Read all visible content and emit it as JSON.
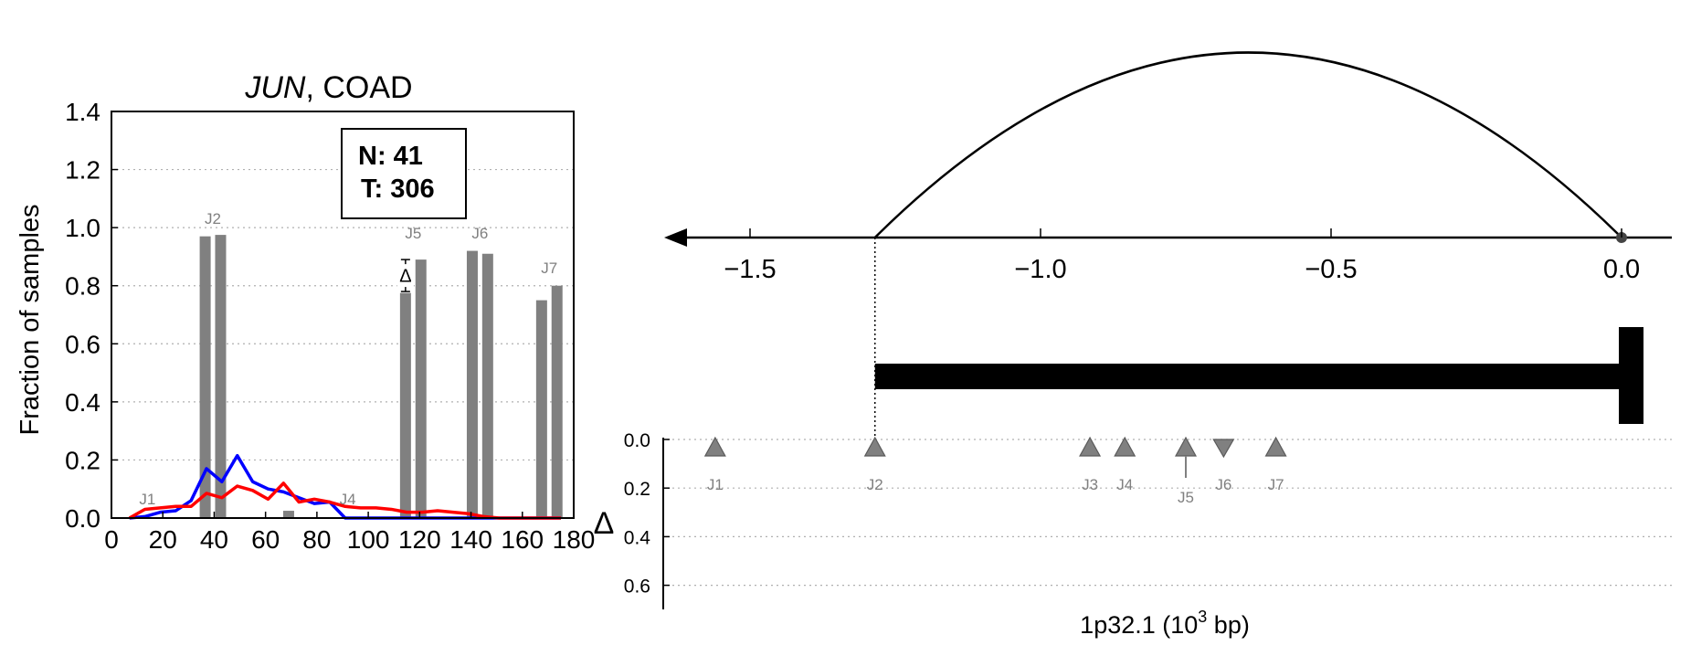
{
  "chart_data": [
    {
      "type": "bar",
      "title_gene": "JUN",
      "title_rest": ", COAD",
      "ylabel": "Fraction of samples",
      "xlim": [
        0,
        180
      ],
      "ylim": [
        0,
        1.4
      ],
      "xticks": [
        "0",
        "20",
        "40",
        "60",
        "80",
        "100",
        "120",
        "140",
        "160",
        "180"
      ],
      "xtick_values": [
        0,
        20,
        40,
        60,
        80,
        100,
        120,
        140,
        160,
        180
      ],
      "yticks": [
        "0.0",
        "0.2",
        "0.4",
        "0.6",
        "0.8",
        "1.0",
        "1.2",
        "1.4"
      ],
      "ytick_values": [
        0,
        0.2,
        0.4,
        0.6,
        0.8,
        1.0,
        1.2,
        1.4
      ],
      "grid": "horizontal dotted",
      "legend_box": {
        "n_label": "N: 41",
        "t_label": "T: 306",
        "placement": "top-right"
      },
      "bars": [
        {
          "x": 36.5,
          "value": 0.97,
          "group": "J2",
          "kind": "normal"
        },
        {
          "x": 42.5,
          "value": 0.975,
          "group": "J2",
          "kind": "tumor"
        },
        {
          "x": 69,
          "value": 0.025,
          "group": "",
          "kind": "normal"
        },
        {
          "x": 114.5,
          "value": 0.775,
          "group": "J5",
          "kind": "normal"
        },
        {
          "x": 120.5,
          "value": 0.89,
          "group": "J5",
          "kind": "tumor"
        },
        {
          "x": 140.5,
          "value": 0.92,
          "group": "J6",
          "kind": "normal"
        },
        {
          "x": 146.5,
          "value": 0.91,
          "group": "J6",
          "kind": "tumor"
        },
        {
          "x": 167.5,
          "value": 0.75,
          "group": "J7",
          "kind": "normal"
        },
        {
          "x": 173.5,
          "value": 0.8,
          "group": "J7",
          "kind": "tumor"
        }
      ],
      "bar_labels": [
        {
          "text": "J1",
          "x": 14,
          "y": 0.035
        },
        {
          "text": "J2",
          "x": 39.5,
          "y": 1.0
        },
        {
          "text": "J4",
          "x": 92,
          "y": 0.035
        },
        {
          "text": "J5",
          "x": 117.5,
          "y": 0.95
        },
        {
          "text": "J6",
          "x": 143.5,
          "y": 0.95
        },
        {
          "text": "J7",
          "x": 170.5,
          "y": 0.83
        }
      ],
      "delta_marker": {
        "text": "Δ",
        "x": 114.5,
        "y_top": 0.89,
        "y_bottom": 0.78
      },
      "series": [
        {
          "name": "",
          "color": "#0000ff",
          "x": [
            7,
            13,
            19,
            25,
            31,
            37,
            43,
            49,
            55,
            61,
            67,
            73,
            79,
            85,
            91,
            97,
            103,
            109,
            115,
            121,
            127,
            133,
            139,
            145,
            151,
            157,
            163,
            169,
            175
          ],
          "y": [
            0.0,
            0.005,
            0.02,
            0.025,
            0.06,
            0.17,
            0.125,
            0.215,
            0.125,
            0.1,
            0.09,
            0.07,
            0.05,
            0.055,
            0.0,
            0.0,
            0.0,
            0.0,
            0.0,
            0.0,
            0.0,
            0.0,
            0.0,
            0.0,
            0.0,
            0.0,
            0.0,
            0.0,
            0.0
          ]
        },
        {
          "name": "",
          "color": "#ff0000",
          "x": [
            7,
            13,
            19,
            25,
            31,
            37,
            43,
            49,
            55,
            61,
            67,
            73,
            79,
            85,
            91,
            97,
            103,
            109,
            115,
            121,
            127,
            133,
            139,
            145,
            151,
            157,
            163,
            169,
            175
          ],
          "y": [
            0.0,
            0.03,
            0.035,
            0.04,
            0.04,
            0.085,
            0.07,
            0.11,
            0.095,
            0.065,
            0.12,
            0.055,
            0.065,
            0.055,
            0.04,
            0.035,
            0.035,
            0.03,
            0.02,
            0.02,
            0.025,
            0.02,
            0.015,
            0.005,
            0.0,
            0.0,
            0.0,
            0.0,
            0.0
          ]
        }
      ]
    },
    {
      "type": "line",
      "title": "",
      "xlabel_main": "1p32.1 (10",
      "xlabel_sup": "3",
      "xlabel_tail": " bp)",
      "xlim": [
        -1.63,
        0.0
      ],
      "xticks": [
        "−1.5",
        "−1.0",
        "−0.5",
        "0.0"
      ],
      "xtick_values": [
        -1.5,
        -1.0,
        -0.5,
        0.0
      ],
      "arc": {
        "start": -1.285,
        "end": 0.0,
        "peak_label": ""
      },
      "gene_bar": {
        "start": -1.285,
        "end": 0.0
      },
      "delta_axis_label": "Δ",
      "delta_ticks": [
        "0.0",
        "0.2",
        "0.4",
        "0.6"
      ],
      "delta_tick_values": [
        0.0,
        0.2,
        0.4,
        0.6
      ],
      "junctions": [
        {
          "label": "J1",
          "x": -1.56,
          "delta": 0.0,
          "marker": "up",
          "arrow": false
        },
        {
          "label": "J2",
          "x": -1.285,
          "delta": 0.0,
          "marker": "up",
          "arrow": false
        },
        {
          "label": "J3",
          "x": -0.915,
          "delta": 0.0,
          "marker": "up",
          "arrow": false
        },
        {
          "label": "J4",
          "x": -0.855,
          "delta": 0.0,
          "marker": "up",
          "arrow": false
        },
        {
          "label": "J5",
          "x": -0.75,
          "delta": 0.0,
          "marker": "up",
          "arrow": true
        },
        {
          "label": "J6",
          "x": -0.685,
          "delta": 0.0,
          "marker": "down",
          "arrow": false
        },
        {
          "label": "J7",
          "x": -0.595,
          "delta": 0.0,
          "marker": "up",
          "arrow": false
        }
      ]
    }
  ]
}
